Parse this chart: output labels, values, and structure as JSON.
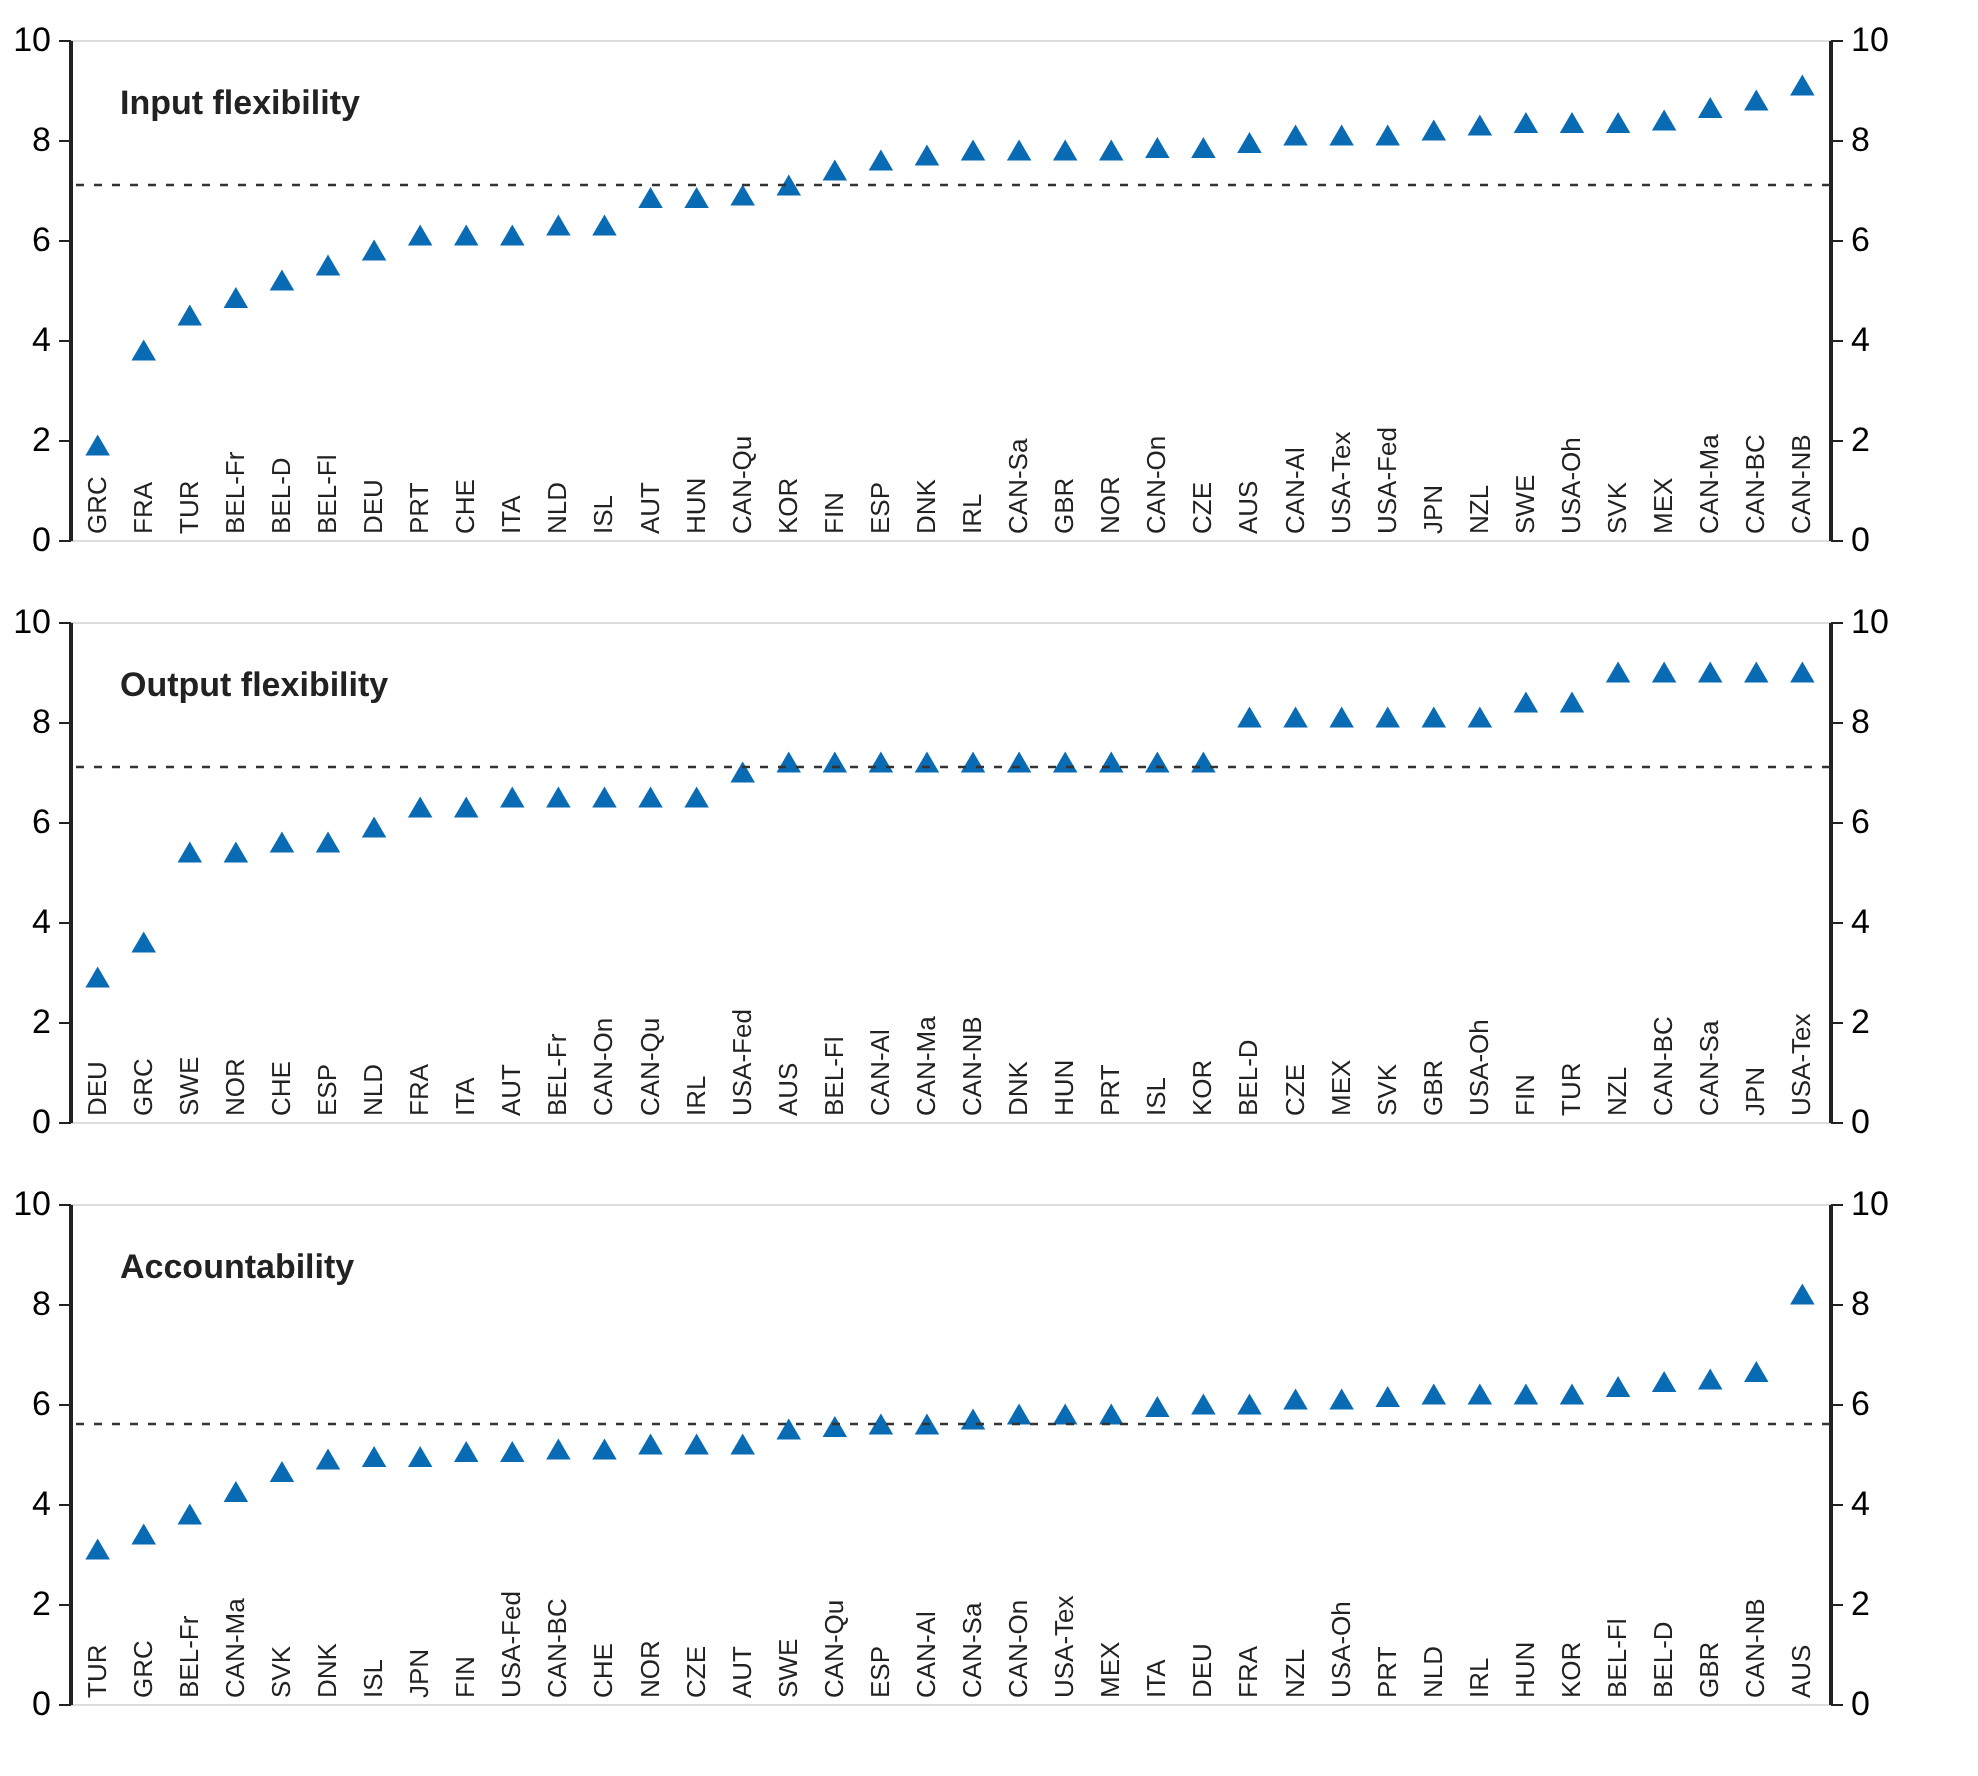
{
  "chart_data": [
    {
      "type": "scatter",
      "title": "Input flexibility",
      "marker": "triangle",
      "grid": false,
      "categories": [
        "GRC",
        "FRA",
        "TUR",
        "BEL-Fr",
        "BEL-D",
        "BEL-Fl",
        "DEU",
        "PRT",
        "CHE",
        "ITA",
        "NLD",
        "ISL",
        "AUT",
        "HUN",
        "CAN-Qu",
        "KOR",
        "FIN",
        "ESP",
        "DNK",
        "IRL",
        "CAN-Sa",
        "GBR",
        "NOR",
        "CAN-On",
        "CZE",
        "AUS",
        "CAN-Al",
        "USA-Tex",
        "USA-Fed",
        "JPN",
        "NZL",
        "SWE",
        "USA-Oh",
        "SVK",
        "MEX",
        "CAN-Ma",
        "CAN-BC",
        "CAN-NB"
      ],
      "series": [
        {
          "color": "#0a6bb5",
          "values": [
            1.9,
            3.8,
            4.5,
            4.85,
            5.2,
            5.5,
            5.8,
            6.1,
            6.1,
            6.1,
            6.3,
            6.3,
            6.85,
            6.85,
            6.9,
            7.1,
            7.4,
            7.6,
            7.7,
            7.8,
            7.8,
            7.8,
            7.8,
            7.85,
            7.85,
            7.95,
            8.1,
            8.1,
            8.1,
            8.2,
            8.3,
            8.35,
            8.35,
            8.35,
            8.4,
            8.65,
            8.8,
            9.1
          ]
        }
      ],
      "ylim": [
        0,
        10
      ],
      "yticks": [
        0,
        2,
        4,
        6,
        8,
        10
      ],
      "y2lim": [
        0,
        10
      ],
      "y2ticks": [
        0,
        2,
        4,
        6,
        8,
        10
      ],
      "ref_lines": [
        {
          "axis": "y",
          "value": 7.1,
          "label": null,
          "color": "#333333",
          "line_style": "dashed"
        }
      ]
    },
    {
      "type": "scatter",
      "title": "Output flexibility",
      "marker": "triangle",
      "grid": false,
      "categories": [
        "DEU",
        "GRC",
        "SWE",
        "NOR",
        "CHE",
        "ESP",
        "NLD",
        "FRA",
        "ITA",
        "AUT",
        "BEL-Fr",
        "CAN-On",
        "CAN-Qu",
        "IRL",
        "USA-Fed",
        "AUS",
        "BEL-Fl",
        "CAN-Al",
        "CAN-Ma",
        "CAN-NB",
        "DNK",
        "HUN",
        "PRT",
        "ISL",
        "KOR",
        "BEL-D",
        "CZE",
        "MEX",
        "SVK",
        "GBR",
        "USA-Oh",
        "FIN",
        "TUR",
        "NZL",
        "CAN-BC",
        "CAN-Sa",
        "JPN",
        "USA-Tex"
      ],
      "series": [
        {
          "color": "#0a6bb5",
          "values": [
            2.9,
            3.6,
            5.4,
            5.4,
            5.6,
            5.6,
            5.9,
            6.3,
            6.3,
            6.5,
            6.5,
            6.5,
            6.5,
            6.5,
            7.0,
            7.2,
            7.2,
            7.2,
            7.2,
            7.2,
            7.2,
            7.2,
            7.2,
            7.2,
            7.2,
            8.1,
            8.1,
            8.1,
            8.1,
            8.1,
            8.1,
            8.4,
            8.4,
            9.0,
            9.0,
            9.0,
            9.0,
            9.0
          ]
        }
      ],
      "ylim": [
        0,
        10
      ],
      "yticks": [
        0,
        2,
        4,
        6,
        8,
        10
      ],
      "y2lim": [
        0,
        10
      ],
      "y2ticks": [
        0,
        2,
        4,
        6,
        8,
        10
      ],
      "ref_lines": [
        {
          "axis": "y",
          "value": 7.1,
          "label": null,
          "color": "#333333",
          "line_style": "dashed"
        }
      ]
    },
    {
      "type": "scatter",
      "title": "Accountability",
      "marker": "triangle",
      "grid": false,
      "categories": [
        "TUR",
        "GRC",
        "BEL-Fr",
        "CAN-Ma",
        "SVK",
        "DNK",
        "ISL",
        "JPN",
        "FIN",
        "USA-Fed",
        "CAN-BC",
        "CHE",
        "NOR",
        "CZE",
        "AUT",
        "SWE",
        "CAN-Qu",
        "ESP",
        "CAN-Al",
        "CAN-Sa",
        "CAN-On",
        "USA-Tex",
        "MEX",
        "ITA",
        "DEU",
        "FRA",
        "NZL",
        "USA-Oh",
        "PRT",
        "NLD",
        "IRL",
        "HUN",
        "KOR",
        "BEL-Fl",
        "BEL-D",
        "GBR",
        "CAN-NB",
        "AUS"
      ],
      "series": [
        {
          "color": "#0a6bb5",
          "values": [
            3.1,
            3.4,
            3.8,
            4.25,
            4.65,
            4.9,
            4.95,
            4.95,
            5.05,
            5.05,
            5.1,
            5.1,
            5.2,
            5.2,
            5.2,
            5.5,
            5.55,
            5.6,
            5.6,
            5.7,
            5.8,
            5.8,
            5.8,
            5.95,
            6.0,
            6.0,
            6.1,
            6.1,
            6.15,
            6.2,
            6.2,
            6.2,
            6.2,
            6.35,
            6.45,
            6.5,
            6.65,
            8.2
          ]
        }
      ],
      "ylim": [
        0,
        10
      ],
      "yticks": [
        0,
        2,
        4,
        6,
        8,
        10
      ],
      "y2lim": [
        0,
        10
      ],
      "y2ticks": [
        0,
        2,
        4,
        6,
        8,
        10
      ],
      "ref_lines": [
        {
          "axis": "y",
          "value": 5.6,
          "label": null,
          "color": "#333333",
          "line_style": "dashed"
        }
      ]
    }
  ]
}
